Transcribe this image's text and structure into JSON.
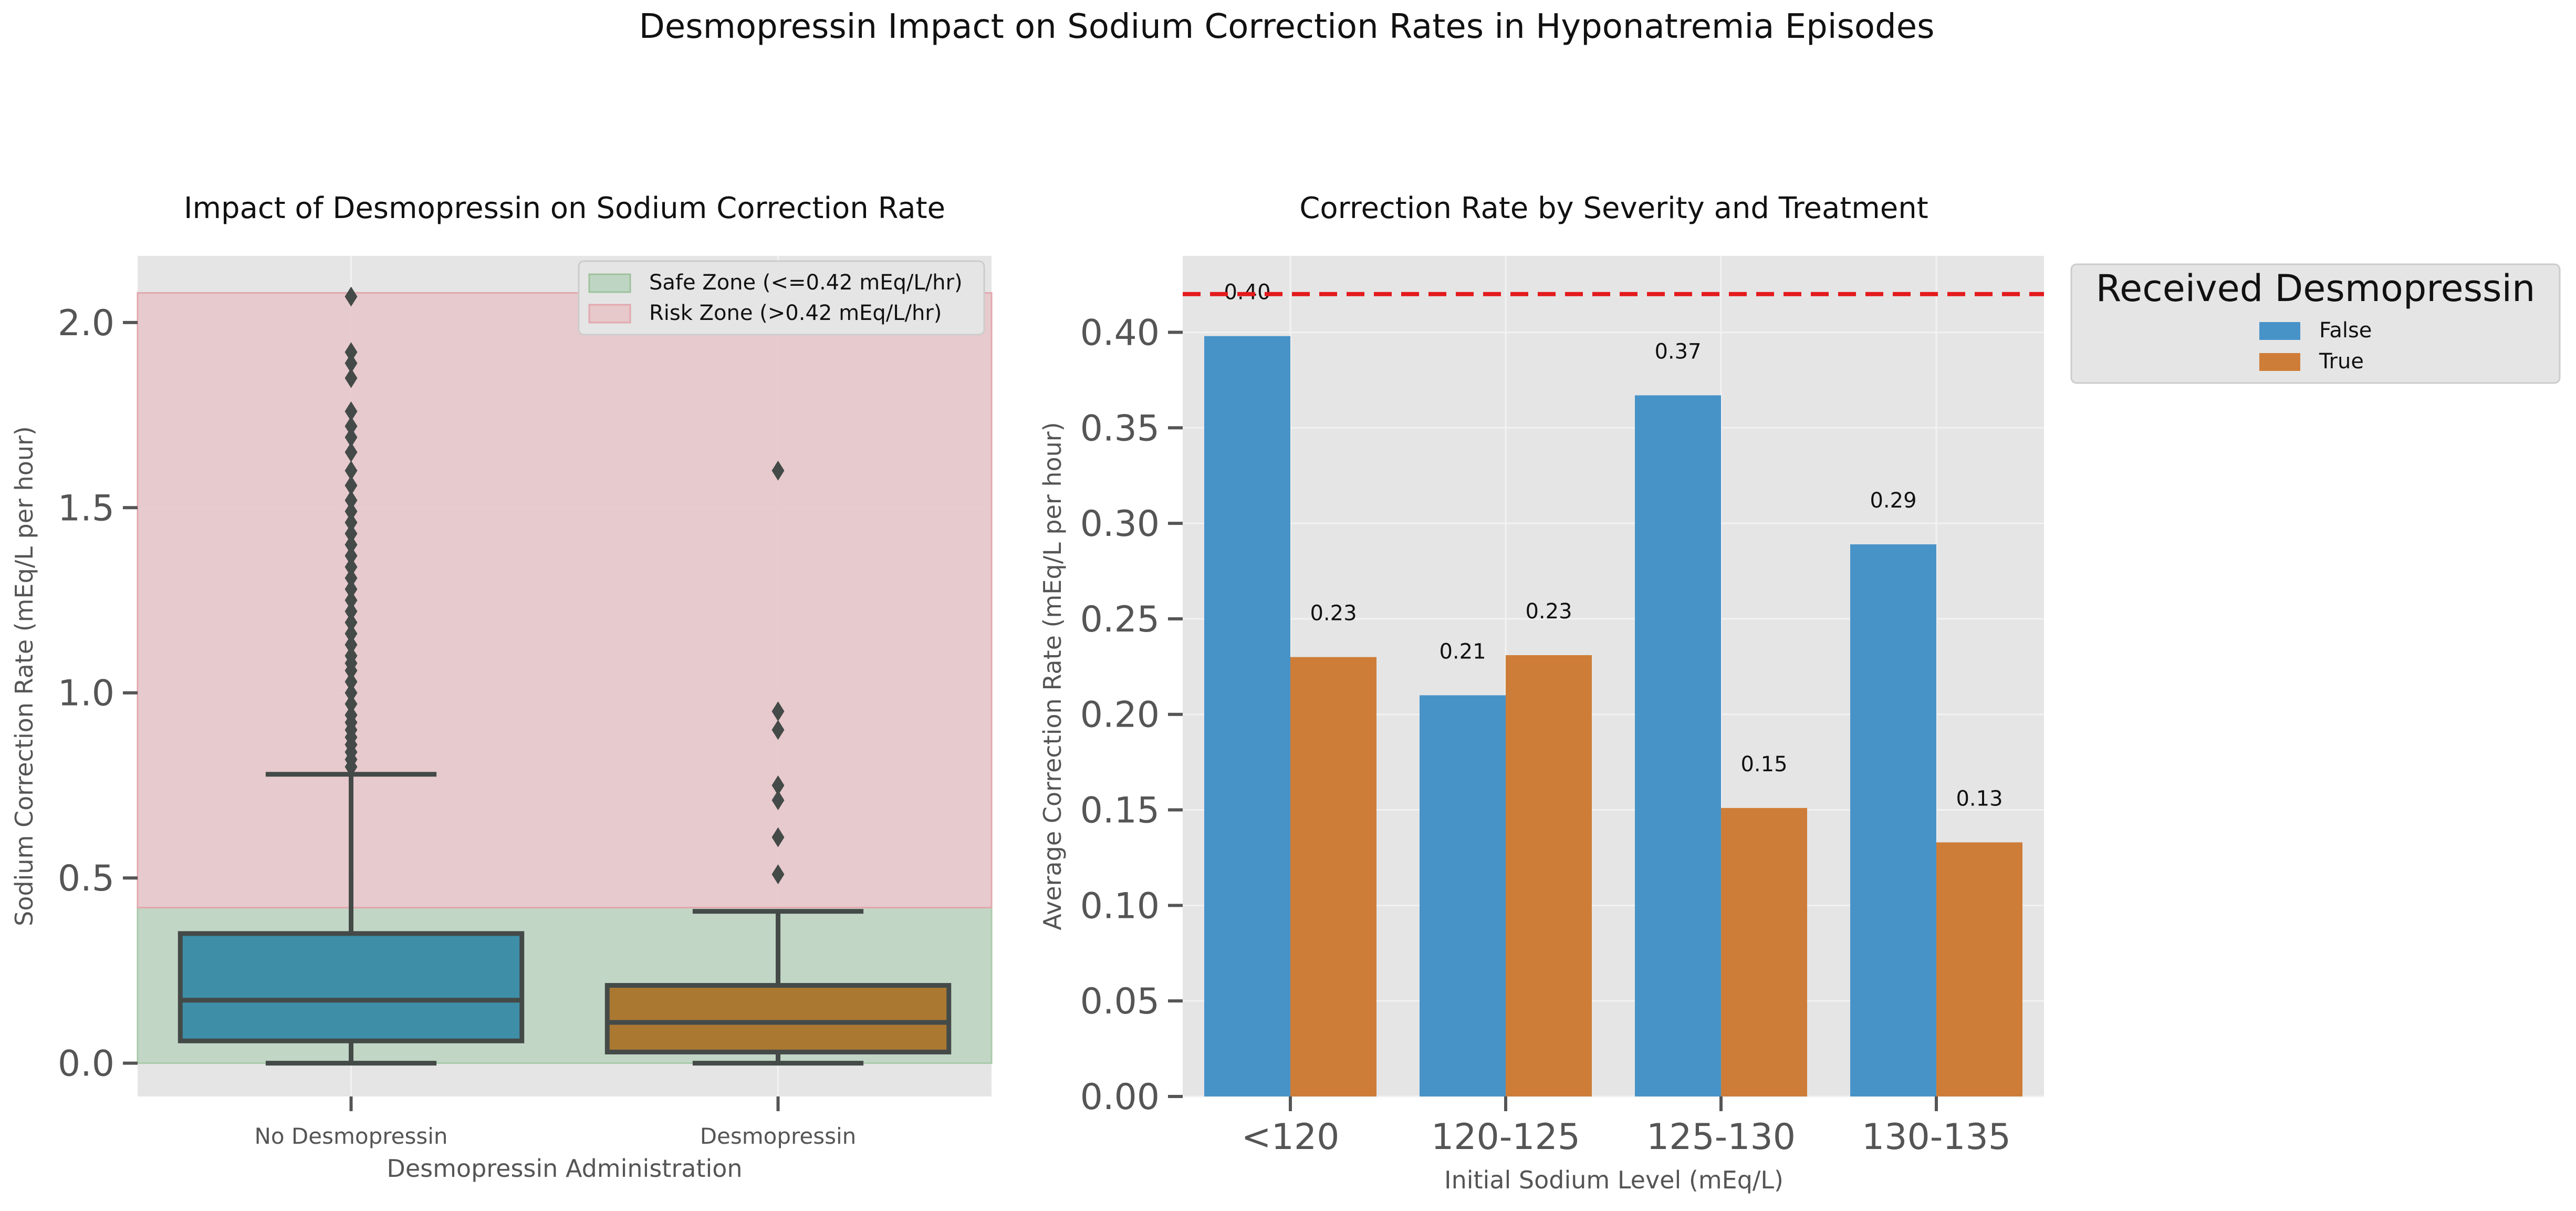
{
  "suptitle": "Desmopressin Impact on Sodium Correction Rates in Hyponatremia Episodes",
  "colors": {
    "background": "#E5E5E5",
    "grid": "#F2F2F2",
    "safe_zone": "#BFD5C3",
    "risk_zone": "#E7C8CB",
    "no_desmo_box": "#3E8EA8",
    "desmo_box": "#AB7832",
    "box_line": "#444A48",
    "bar_false": "#4793C8",
    "bar_true": "#CE7D38",
    "threshold_line": "#E31A1C"
  },
  "chart_data": [
    {
      "type": "box",
      "title": "Impact of Desmopressin on Sodium Correction Rate",
      "xlabel": "Desmopressin Administration",
      "ylabel": "Sodium Correction Rate (mEq/L per hour)",
      "categories": [
        "No Desmopressin",
        "Desmopressin"
      ],
      "ylim": [
        -0.09,
        2.18
      ],
      "yticks": [
        0.0,
        0.5,
        1.0,
        1.5,
        2.0
      ],
      "ytick_labels": [
        "0.0",
        "0.5",
        "1.0",
        "1.5",
        "2.0"
      ],
      "grid": true,
      "bands": [
        {
          "label": "Safe Zone (<=0.42 mEq/L/hr)",
          "from": 0.0,
          "to": 0.42
        },
        {
          "label": "Risk Zone (>0.42 mEq/L/hr)",
          "from": 0.42,
          "to": 2.08
        }
      ],
      "legend_position": "top-right",
      "boxes": [
        {
          "name": "No Desmopressin",
          "whisker_low": 0.0,
          "q1": 0.06,
          "median": 0.17,
          "q3": 0.35,
          "whisker_high": 0.78,
          "outliers": [
            0.8,
            0.82,
            0.84,
            0.86,
            0.88,
            0.9,
            0.92,
            0.94,
            0.97,
            1.0,
            1.03,
            1.06,
            1.08,
            1.1,
            1.13,
            1.16,
            1.19,
            1.22,
            1.25,
            1.28,
            1.31,
            1.34,
            1.37,
            1.4,
            1.43,
            1.46,
            1.49,
            1.52,
            1.56,
            1.6,
            1.65,
            1.69,
            1.72,
            1.76,
            1.85,
            1.89,
            1.92,
            2.07
          ]
        },
        {
          "name": "Desmopressin",
          "whisker_low": 0.0,
          "q1": 0.03,
          "median": 0.11,
          "q3": 0.21,
          "whisker_high": 0.41,
          "outliers": [
            0.51,
            0.61,
            0.71,
            0.75,
            0.9,
            0.95,
            1.6
          ]
        }
      ]
    },
    {
      "type": "bar",
      "title": "Correction Rate by Severity and Treatment",
      "xlabel": "Initial Sodium Level (mEq/L)",
      "ylabel": "Average Correction Rate (mEq/L per hour)",
      "categories": [
        "<120",
        "120-125",
        "125-130",
        "130-135"
      ],
      "ylim": [
        0.0,
        0.44
      ],
      "yticks": [
        0.0,
        0.05,
        0.1,
        0.15,
        0.2,
        0.25,
        0.3,
        0.35,
        0.4
      ],
      "ytick_labels": [
        "0.00",
        "0.05",
        "0.10",
        "0.15",
        "0.20",
        "0.25",
        "0.30",
        "0.35",
        "0.40"
      ],
      "grid": true,
      "threshold": 0.42,
      "legend_title": "Received Desmopressin",
      "legend_position": "outside-right",
      "series": [
        {
          "name": "False",
          "values": [
            0.398,
            0.21,
            0.367,
            0.289
          ],
          "labels": [
            "0.40",
            "0.21",
            "0.37",
            "0.29"
          ]
        },
        {
          "name": "True",
          "values": [
            0.23,
            0.231,
            0.151,
            0.133
          ],
          "labels": [
            "0.23",
            "0.23",
            "0.15",
            "0.13"
          ]
        }
      ]
    }
  ]
}
